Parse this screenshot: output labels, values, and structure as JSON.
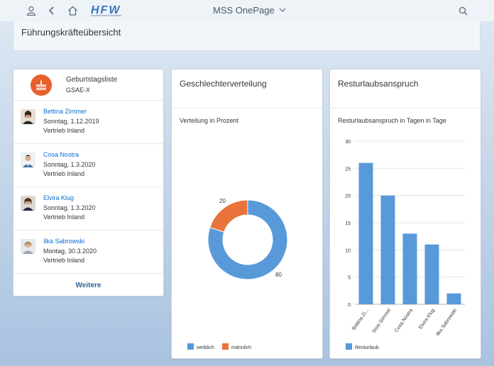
{
  "shell": {
    "app_title": "MSS OnePage",
    "logo_text": "HFW",
    "logo_tagline": "HOLZVERARBEITUNGSWERK",
    "icons": [
      "user-icon",
      "back-icon",
      "home-icon",
      "search-icon"
    ]
  },
  "page": {
    "title": "Führungskräfteübersicht"
  },
  "birthdays": {
    "title": "Geburtstagsliste",
    "subtitle": "GSAE-X",
    "people": [
      {
        "name": "Bettina Zimmer",
        "date": "Sonntag, 1.12.2019",
        "dept": "Vertrieb Inland"
      },
      {
        "name": "Cosa Nostra",
        "date": "Sonntag, 1.3.2020",
        "dept": "Vertrieb Inland"
      },
      {
        "name": "Elvira Klug",
        "date": "Sonntag, 1.3.2020",
        "dept": "Vertrieb Inland"
      },
      {
        "name": "Ilka Sabrowski",
        "date": "Montag, 30.3.2020",
        "dept": "Vertrieb Inland"
      }
    ],
    "more_label": "Weitere"
  },
  "gender": {
    "title": "Geschlechterverteilung",
    "subtitle": "Verteilung in Prozent"
  },
  "vacation": {
    "title": "Resturlaubsanspruch",
    "subtitle": "Resturlaubsanspruch in Tagen in Tage"
  },
  "chart_data": [
    {
      "type": "pie",
      "donut": true,
      "title": "Geschlechterverteilung",
      "subtitle": "Verteilung in Prozent",
      "categories": [
        "weiblich",
        "männlich"
      ],
      "values": [
        80,
        20
      ],
      "colors": [
        "#5899da",
        "#e8743b"
      ],
      "legend": "bottom-left"
    },
    {
      "type": "bar",
      "title": "Resturlaubsanspruch",
      "subtitle": "Resturlaubsanspruch in Tagen in Tage",
      "categories": [
        "Bettina Zi...",
        "Sissi Simmel",
        "Cosa Nostra",
        "Elvira Klug",
        "Ilka Sabrowski"
      ],
      "series": [
        {
          "name": "Resturlaub",
          "values": [
            26,
            20,
            13,
            11,
            2
          ]
        }
      ],
      "yticks": [
        "0",
        "5",
        "10",
        "15",
        "20",
        "25",
        "30"
      ],
      "ylim": [
        0,
        30
      ],
      "grid": true,
      "color": "#5899da",
      "legend": "bottom-left"
    }
  ]
}
